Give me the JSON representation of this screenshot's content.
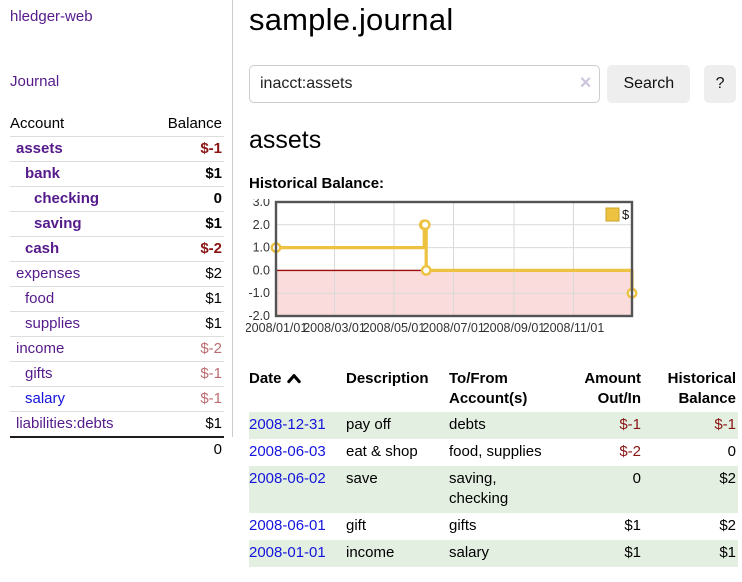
{
  "app": {
    "brand": "hledger-web",
    "nav_journal": "Journal"
  },
  "sidebar": {
    "header": {
      "account": "Account",
      "balance": "Balance"
    },
    "accounts": [
      {
        "name": "assets",
        "balance": "$-1",
        "indent": 1,
        "bold": true,
        "neg": "strong"
      },
      {
        "name": "bank",
        "balance": "$1",
        "indent": 2,
        "bold": true
      },
      {
        "name": "checking",
        "balance": "0",
        "indent": 3,
        "bold": true
      },
      {
        "name": "saving",
        "balance": "$1",
        "indent": 3,
        "bold": true
      },
      {
        "name": "cash",
        "balance": "$-2",
        "indent": 2,
        "bold": true,
        "neg": "strong"
      },
      {
        "name": "expenses",
        "balance": "$2",
        "indent": 1
      },
      {
        "name": "food",
        "balance": "$1",
        "indent": 2
      },
      {
        "name": "supplies",
        "balance": "$1",
        "indent": 2
      },
      {
        "name": "income",
        "balance": "$-2",
        "indent": 1,
        "neg": "soft"
      },
      {
        "name": "gifts",
        "balance": "$-1",
        "indent": 2,
        "neg": "soft"
      },
      {
        "name": "salary",
        "balance": "$-1",
        "indent": 2,
        "neg": "soft",
        "blue": true
      },
      {
        "name": "liabilities:debts",
        "balance": "$1",
        "indent": 1
      }
    ],
    "total": "0"
  },
  "header": {
    "title": "sample.journal"
  },
  "search": {
    "value": "inacct:assets",
    "clear_icon": "×",
    "button": "Search",
    "help_button": "?"
  },
  "account_page": {
    "title": "assets",
    "chart_label": "Historical Balance:"
  },
  "chart_data": {
    "type": "line",
    "step": true,
    "title": "Historical Balance",
    "series": [
      {
        "name": "$",
        "color": "#edc240",
        "points": [
          [
            "2008-01-01",
            1
          ],
          [
            "2008-06-01",
            2
          ],
          [
            "2008-06-02",
            2
          ],
          [
            "2008-06-03",
            0
          ],
          [
            "2008-12-31",
            -1
          ]
        ]
      }
    ],
    "x_range": [
      "2008-01-01",
      "2008-12-31"
    ],
    "x_ticks": [
      "2008/01/01",
      "2008/03/01",
      "2008/05/01",
      "2008/07/01",
      "2008/09/01",
      "2008/11/01"
    ],
    "y_ticks": [
      3.0,
      2.0,
      1.0,
      0.0,
      -1.0,
      -2.0
    ],
    "ylim": [
      -2,
      3
    ],
    "legend": "$",
    "legend_position": "top-right",
    "grid": true,
    "negative_region_fill": "#fadcdc",
    "zero_line_color": "#9b0d0d",
    "border_color": "#545454",
    "grid_color": "#d9d9d9"
  },
  "register": {
    "columns": [
      {
        "key": "date",
        "label": "Date",
        "sortable": true,
        "sort": "asc"
      },
      {
        "key": "description",
        "label": "Description"
      },
      {
        "key": "accounts",
        "label": "To/From\nAccount(s)"
      },
      {
        "key": "amount",
        "label": "Amount\nOut/In",
        "align": "right"
      },
      {
        "key": "balance",
        "label": "Historical\nBalance",
        "align": "right"
      }
    ],
    "rows": [
      {
        "date": "2008-12-31",
        "description": "pay off",
        "accounts": "debts",
        "amount": "$-1",
        "amount_neg": true,
        "balance": "$-1",
        "balance_neg": true
      },
      {
        "date": "2008-06-03",
        "description": "eat & shop",
        "accounts": "food, supplies",
        "amount": "$-2",
        "amount_neg": true,
        "balance": "0"
      },
      {
        "date": "2008-06-02",
        "description": "save",
        "accounts": "saving,\nchecking",
        "amount": "0",
        "balance": "$2"
      },
      {
        "date": "2008-06-01",
        "description": "gift",
        "accounts": "gifts",
        "amount": "$1",
        "balance": "$2"
      },
      {
        "date": "2008-01-01",
        "description": "income",
        "accounts": "salary",
        "amount": "$1",
        "balance": "$1"
      }
    ]
  }
}
